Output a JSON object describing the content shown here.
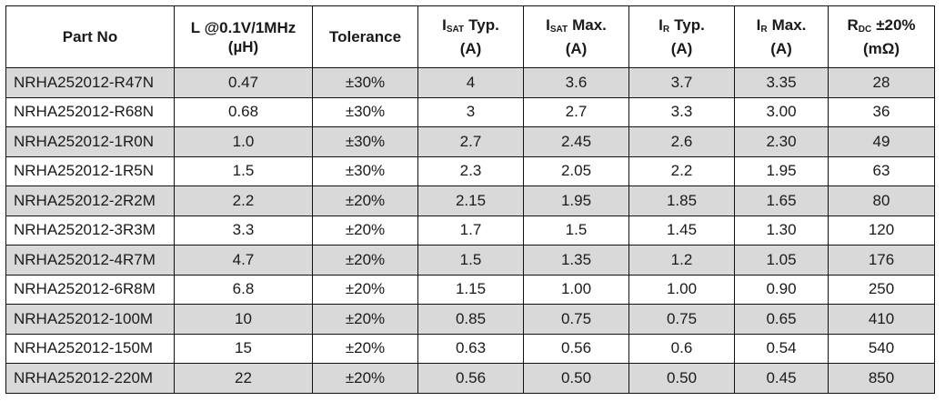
{
  "headers": [
    {
      "line1": "Part No",
      "line2": ""
    },
    {
      "line1": "L @0.1V/1MHz",
      "line2": "(µH)"
    },
    {
      "line1": "Tolerance",
      "line2": ""
    },
    {
      "main": "I",
      "sub": "SAT",
      "rest": "Typ.",
      "line2": "(A)"
    },
    {
      "main": "I",
      "sub": "SAT",
      "rest": "Max.",
      "line2": "(A)"
    },
    {
      "main": "I",
      "sub": "R",
      "rest": "Typ.",
      "line2": "(A)"
    },
    {
      "main": "I",
      "sub": "R",
      "rest": "Max.",
      "line2": "(A)"
    },
    {
      "main": "R",
      "sub": "DC",
      "rest": "±20%",
      "line2": "(mΩ)"
    }
  ],
  "rows": [
    [
      "NRHA252012-R47N",
      "0.47",
      "±30%",
      "4",
      "3.6",
      "3.7",
      "3.35",
      "28"
    ],
    [
      "NRHA252012-R68N",
      "0.68",
      "±30%",
      "3",
      "2.7",
      "3.3",
      "3.00",
      "36"
    ],
    [
      "NRHA252012-1R0N",
      "1.0",
      "±30%",
      "2.7",
      "2.45",
      "2.6",
      "2.30",
      "49"
    ],
    [
      "NRHA252012-1R5N",
      "1.5",
      "±30%",
      "2.3",
      "2.05",
      "2.2",
      "1.95",
      "63"
    ],
    [
      "NRHA252012-2R2M",
      "2.2",
      "±20%",
      "2.15",
      "1.95",
      "1.85",
      "1.65",
      "80"
    ],
    [
      "NRHA252012-3R3M",
      "3.3",
      "±20%",
      "1.7",
      "1.5",
      "1.45",
      "1.30",
      "120"
    ],
    [
      "NRHA252012-4R7M",
      "4.7",
      "±20%",
      "1.5",
      "1.35",
      "1.2",
      "1.05",
      "176"
    ],
    [
      "NRHA252012-6R8M",
      "6.8",
      "±20%",
      "1.15",
      "1.00",
      "1.00",
      "0.90",
      "250"
    ],
    [
      "NRHA252012-100M",
      "10",
      "±20%",
      "0.85",
      "0.75",
      "0.75",
      "0.65",
      "410"
    ],
    [
      "NRHA252012-150M",
      "15",
      "±20%",
      "0.63",
      "0.56",
      "0.6",
      "0.54",
      "540"
    ],
    [
      "NRHA252012-220M",
      "22",
      "±20%",
      "0.56",
      "0.50",
      "0.50",
      "0.45",
      "850"
    ]
  ],
  "colors": {
    "shade": "#d9d9d9",
    "plain": "#ffffff",
    "border": "#111111"
  }
}
